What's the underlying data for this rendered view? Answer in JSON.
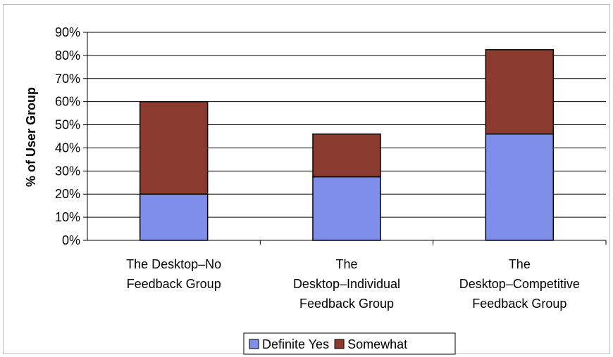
{
  "chart_data": {
    "type": "bar",
    "stacked": true,
    "categories": [
      [
        "The Desktop–No",
        "Feedback Group"
      ],
      [
        "The",
        "Desktop–Individual",
        "Feedback Group"
      ],
      [
        "The",
        "Desktop–Competitive",
        "Feedback Group"
      ]
    ],
    "series": [
      {
        "name": "Definite Yes",
        "color": "#7f8ee8",
        "values": [
          20,
          27.5,
          46
        ]
      },
      {
        "name": "Somewhat",
        "color": "#8b3a2e",
        "values": [
          40,
          18.5,
          36.5
        ]
      }
    ],
    "ylabel": "% of User Group",
    "xlabel": "",
    "ylim": [
      0,
      90
    ],
    "yticks": [
      "0%",
      "10%",
      "20%",
      "30%",
      "40%",
      "50%",
      "60%",
      "70%",
      "80%",
      "90%"
    ],
    "grid": true,
    "legend": "bottom"
  }
}
